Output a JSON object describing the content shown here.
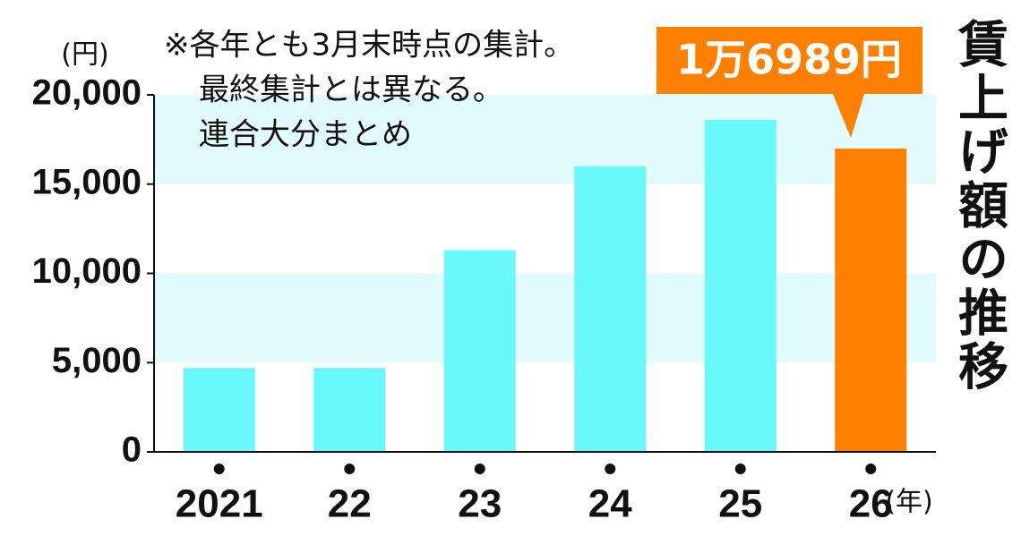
{
  "chart_data": {
    "type": "bar",
    "title": "賃上げ額の推移",
    "note": [
      "※各年とも3月末時点の集計。",
      "最終集計とは異なる。",
      "連合大分まとめ"
    ],
    "y_unit": "(円)",
    "x_unit": "(年)",
    "categories": [
      "2021",
      "22",
      "23",
      "24",
      "25",
      "26"
    ],
    "values": [
      4700,
      4700,
      11300,
      16000,
      18600,
      16989
    ],
    "value_labels": [
      null,
      null,
      null,
      null,
      null,
      "1万6989円"
    ],
    "colors": [
      "#6af9fb",
      "#6af9fb",
      "#6af9fb",
      "#6af9fb",
      "#6af9fb",
      "#ff8000"
    ],
    "band_color": "#e2fbfc",
    "ylim": [
      0,
      20000
    ],
    "yticks": [
      0,
      {
        "value": 5000,
        "label": "5,000"
      },
      {
        "value": 10000,
        "label": "10,000"
      },
      {
        "value": 15000,
        "label": "15,000"
      },
      {
        "value": 20000,
        "label": "20,000"
      }
    ]
  }
}
